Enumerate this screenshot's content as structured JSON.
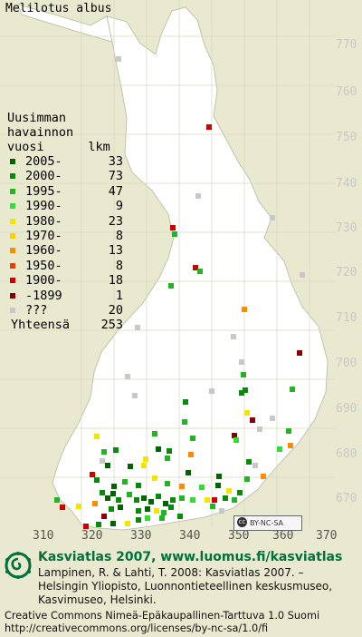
{
  "species": "Melilotus albus",
  "legend": {
    "header": [
      "Uusimman",
      "havainnon",
      "vuosi      lkm"
    ],
    "rows": [
      {
        "label": "2005-",
        "count": "33",
        "color": "#006400"
      },
      {
        "label": "2000-",
        "count": "73",
        "color": "#0a8a0a"
      },
      {
        "label": "1995-",
        "count": "47",
        "color": "#22b422"
      },
      {
        "label": "1990-",
        "count": "9",
        "color": "#33dd33"
      },
      {
        "label": "1980-",
        "count": "23",
        "color": "#f2e600"
      },
      {
        "label": "1970-",
        "count": "8",
        "color": "#ffd000"
      },
      {
        "label": "1960-",
        "count": "13",
        "color": "#ff8c00"
      },
      {
        "label": "1950-",
        "count": "8",
        "color": "#e84000"
      },
      {
        "label": "1900-",
        "count": "18",
        "color": "#cc0000"
      },
      {
        "label": "-1899",
        "count": "1",
        "color": "#880000"
      },
      {
        "label": "???",
        "count": "20",
        "color": "#c8c8c8"
      }
    ],
    "total_label": "Yhteensä",
    "total_count": "253"
  },
  "grid": {
    "y_labels": [
      "770",
      "760",
      "750",
      "740",
      "730",
      "720",
      "710",
      "700",
      "690",
      "680",
      "670"
    ],
    "x_labels": [
      "310",
      "320",
      "330",
      "340",
      "350",
      "360",
      "370"
    ]
  },
  "cc_badge": "BY-NC-SA",
  "credit": {
    "title": "Kasviatlas 2007, www.luomus.fi/kasviatlas",
    "line1": "Lampinen, R. & Lahti, T. 2008: Kasviatlas 2007. –",
    "line2": "Helsingin Yliopisto, Luonnontieteellinen keskusmuseo,",
    "line3": "Kasvimuseo, Helsinki."
  },
  "license": {
    "line1": "Creative Commons Nimeä-Epäkaupallinen-Tarttuva 1.0 Suomi",
    "line2": "http://creativecommons.org/licenses/by-nc-sa/1.0/fi"
  }
}
